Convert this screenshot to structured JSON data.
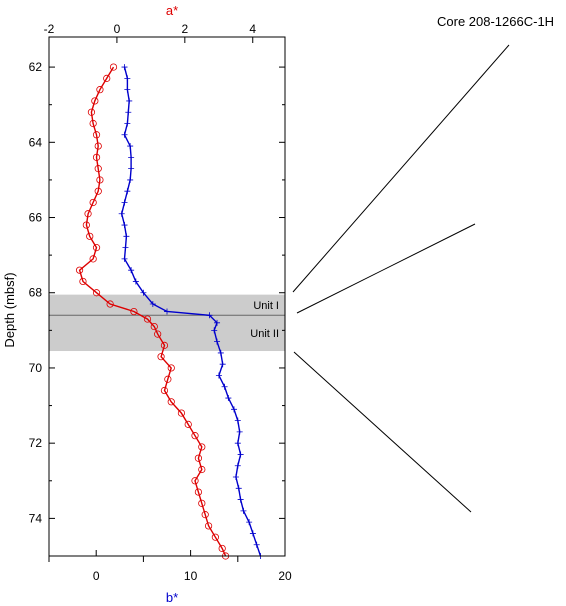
{
  "chart_data": {
    "type": "line",
    "core_label": "Core 208-1266C-1H",
    "y_axis": {
      "label": "Depth (mbsf)",
      "range": [
        61.2,
        75
      ],
      "ticks": [
        "62",
        "64",
        "66",
        "68",
        "70",
        "72",
        "74"
      ],
      "inverted": true
    },
    "top_axis": {
      "label": "a*",
      "range": [
        -2,
        4.95
      ],
      "ticks": [
        "-2",
        "0",
        "2",
        "4"
      ],
      "color": "#dd0000"
    },
    "bottom_axis": {
      "label": "b*",
      "range": [
        -5,
        20
      ],
      "ticks": [
        "0",
        "10",
        "20"
      ],
      "color": "#0000cc"
    },
    "units": [
      {
        "name": "Unit I",
        "depth_range": [
          68.05,
          68.6
        ]
      },
      {
        "name": "Unit II",
        "depth_range": [
          68.6,
          69.55
        ]
      }
    ],
    "series": [
      {
        "axis": "a*",
        "color": "#dd0000",
        "depth": [
          62.0,
          62.3,
          62.6,
          62.9,
          63.2,
          63.5,
          63.8,
          64.1,
          64.4,
          64.7,
          65.0,
          65.3,
          65.6,
          65.9,
          66.2,
          66.5,
          66.8,
          67.1,
          67.4,
          67.7,
          68.0,
          68.3,
          68.5,
          68.7,
          68.9,
          69.1,
          69.4,
          69.7,
          70.0,
          70.3,
          70.6,
          70.9,
          71.2,
          71.5,
          71.8,
          72.1,
          72.4,
          72.7,
          73.0,
          73.3,
          73.6,
          73.9,
          74.2,
          74.5,
          74.8,
          75.0
        ],
        "values": [
          -0.1,
          -0.3,
          -0.5,
          -0.65,
          -0.75,
          -0.7,
          -0.6,
          -0.55,
          -0.6,
          -0.55,
          -0.5,
          -0.55,
          -0.7,
          -0.85,
          -0.9,
          -0.8,
          -0.6,
          -0.7,
          -1.1,
          -1.0,
          -0.6,
          -0.2,
          0.5,
          0.9,
          1.1,
          1.2,
          1.4,
          1.3,
          1.6,
          1.5,
          1.4,
          1.6,
          1.9,
          2.1,
          2.3,
          2.5,
          2.4,
          2.5,
          2.3,
          2.4,
          2.5,
          2.6,
          2.7,
          2.9,
          3.1,
          3.2
        ]
      },
      {
        "axis": "b*",
        "color": "#0000cc",
        "depth": [
          62.0,
          62.3,
          62.6,
          62.9,
          63.2,
          63.5,
          63.8,
          64.1,
          64.4,
          64.7,
          65.0,
          65.3,
          65.6,
          65.9,
          66.2,
          66.5,
          66.8,
          67.1,
          67.4,
          67.7,
          68.0,
          68.3,
          68.5,
          68.6,
          68.8,
          69.0,
          69.3,
          69.6,
          69.9,
          70.2,
          70.5,
          70.8,
          71.1,
          71.4,
          71.7,
          72.0,
          72.3,
          72.6,
          72.9,
          73.2,
          73.5,
          73.8,
          74.1,
          74.4,
          74.7,
          75.0
        ],
        "values": [
          3.0,
          3.3,
          3.3,
          3.5,
          3.4,
          3.3,
          3.0,
          3.6,
          3.7,
          3.7,
          3.6,
          3.3,
          3.0,
          2.7,
          3.0,
          3.2,
          3.1,
          3.0,
          3.7,
          4.2,
          5.0,
          6.0,
          7.5,
          12.0,
          12.8,
          12.5,
          12.8,
          13.2,
          13.4,
          13.0,
          13.6,
          14.0,
          14.6,
          15.0,
          15.2,
          15.0,
          15.3,
          15.0,
          14.8,
          15.1,
          15.3,
          15.6,
          16.2,
          16.6,
          17.0,
          17.4
        ]
      }
    ],
    "grid": false
  }
}
